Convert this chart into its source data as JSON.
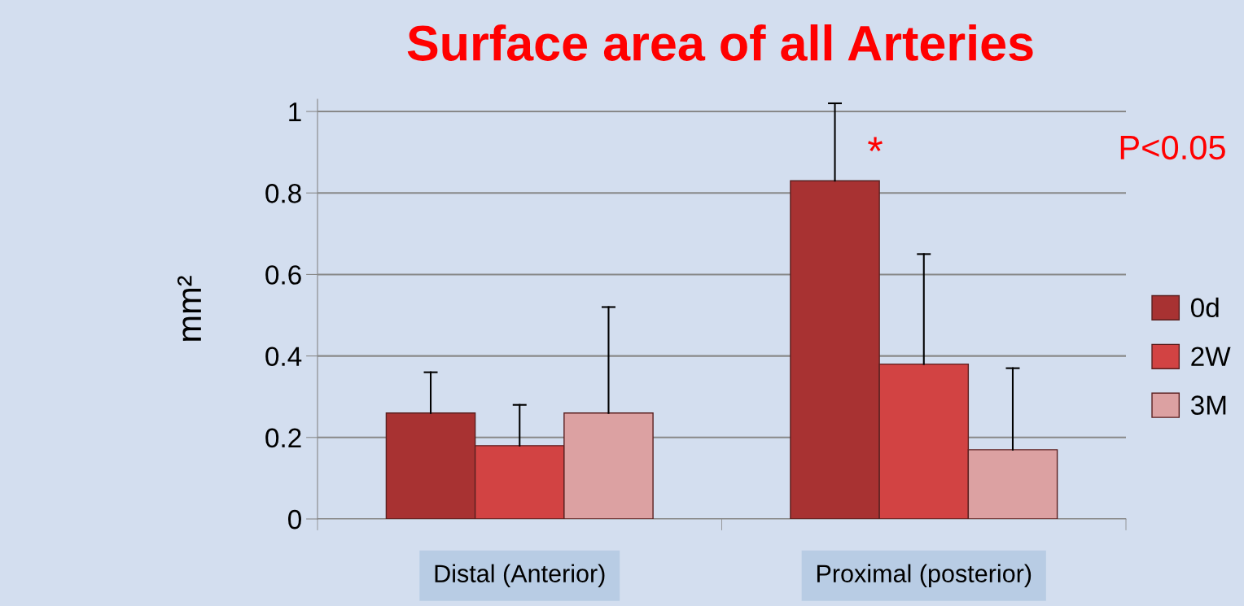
{
  "chart_data": {
    "type": "bar",
    "title": "Surface area of all Arteries",
    "ylabel": "mm²",
    "categories": [
      "Distal (Anterior)",
      "Proximal (posterior)"
    ],
    "series": [
      {
        "name": "0d",
        "color": "#a83232",
        "values": [
          0.26,
          0.83
        ],
        "errors": [
          [
            0.26,
            0.36
          ],
          [
            0.83,
            1.02
          ]
        ]
      },
      {
        "name": "2W",
        "color": "#d24343",
        "values": [
          0.18,
          0.38
        ],
        "errors": [
          [
            0.18,
            0.28
          ],
          [
            0.38,
            0.65
          ]
        ]
      },
      {
        "name": "3M",
        "color": "#dca1a2",
        "values": [
          0.26,
          0.17
        ],
        "errors": [
          [
            0.26,
            0.52
          ],
          [
            0.17,
            0.37
          ]
        ]
      }
    ],
    "ylim": [
      0,
      1.03
    ],
    "yticks": [
      0,
      0.2,
      0.4,
      0.6,
      0.8,
      1
    ],
    "grid": "y",
    "legend": "right",
    "annotations": [
      "*",
      "P<0.05"
    ]
  }
}
